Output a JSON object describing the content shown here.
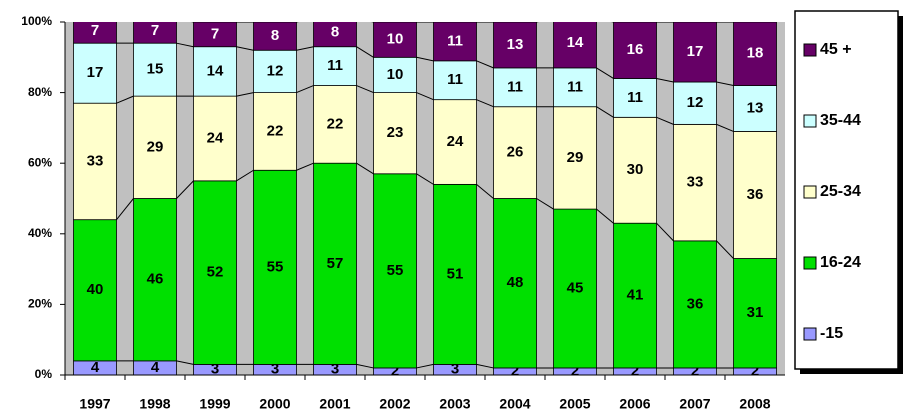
{
  "chart_data": {
    "type": "stacked_bar",
    "categories": [
      "1997",
      "1998",
      "1999",
      "2000",
      "2001",
      "2002",
      "2003",
      "2004",
      "2005",
      "2006",
      "2007",
      "2008"
    ],
    "series": [
      {
        "name": "-15",
        "color": "#9999ff",
        "values": [
          4,
          4,
          3,
          3,
          3,
          2,
          3,
          2,
          2,
          2,
          2,
          2
        ]
      },
      {
        "name": "16-24",
        "color": "#00e000",
        "values": [
          40,
          46,
          52,
          55,
          57,
          55,
          51,
          48,
          45,
          41,
          36,
          31
        ]
      },
      {
        "name": "25-34",
        "color": "#ffffcc",
        "values": [
          33,
          29,
          24,
          22,
          22,
          23,
          24,
          26,
          29,
          30,
          33,
          36
        ]
      },
      {
        "name": "35-44",
        "color": "#ccffff",
        "values": [
          17,
          15,
          14,
          12,
          11,
          10,
          11,
          11,
          11,
          11,
          12,
          13
        ]
      },
      {
        "name": "45 +",
        "color": "#660066",
        "values": [
          7,
          7,
          7,
          8,
          8,
          10,
          11,
          13,
          14,
          16,
          17,
          18
        ]
      }
    ],
    "ylim": [
      0,
      100
    ],
    "yticks": [
      {
        "value": 0,
        "label": "0%"
      },
      {
        "value": 20,
        "label": "20%"
      },
      {
        "value": 40,
        "label": "40%"
      },
      {
        "value": 60,
        "label": "60%"
      },
      {
        "value": 80,
        "label": "80%"
      },
      {
        "value": 100,
        "label": "100%"
      }
    ],
    "legend": "right"
  }
}
